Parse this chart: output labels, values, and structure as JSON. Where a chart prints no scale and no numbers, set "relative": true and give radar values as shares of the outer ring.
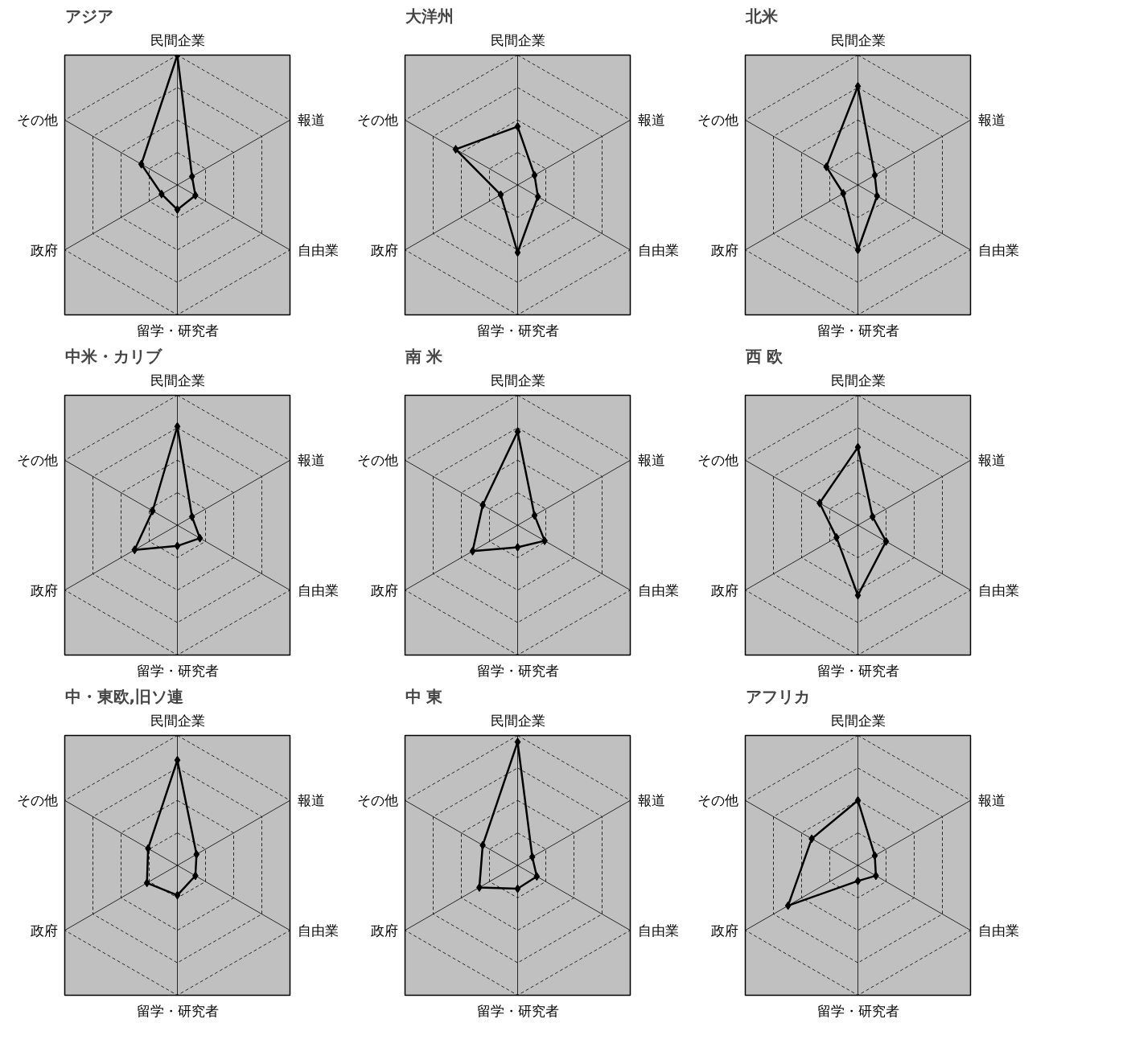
{
  "chart_data": [
    {
      "type": "radar",
      "title": "アジア",
      "categories": [
        "民間企業",
        "報道",
        "自由業",
        "留学・研究者",
        "政府",
        "その他"
      ],
      "relative": true,
      "grid": true,
      "marker": "diamond",
      "line_style": "solid",
      "series": [
        {
          "color": "#000000",
          "values": [
            1.0,
            0.13,
            0.16,
            0.19,
            0.14,
            0.32
          ]
        }
      ]
    },
    {
      "type": "radar",
      "title": "大洋州",
      "categories": [
        "民間企業",
        "報道",
        "自由業",
        "留学・研究者",
        "政府",
        "その他"
      ],
      "relative": true,
      "grid": true,
      "marker": "diamond",
      "line_style": "solid",
      "series": [
        {
          "color": "#000000",
          "values": [
            0.45,
            0.15,
            0.18,
            0.52,
            0.15,
            0.55
          ]
        }
      ]
    },
    {
      "type": "radar",
      "title": "北米",
      "categories": [
        "民間企業",
        "報道",
        "自由業",
        "留学・研究者",
        "政府",
        "その他"
      ],
      "relative": true,
      "grid": true,
      "marker": "diamond",
      "line_style": "solid",
      "series": [
        {
          "color": "#000000",
          "values": [
            0.76,
            0.15,
            0.17,
            0.5,
            0.13,
            0.28
          ]
        }
      ]
    },
    {
      "type": "radar",
      "title": "中米・カリブ",
      "categories": [
        "民間企業",
        "報道",
        "自由業",
        "留学・研究者",
        "政府",
        "その他"
      ],
      "relative": true,
      "grid": true,
      "marker": "diamond",
      "line_style": "solid",
      "series": [
        {
          "color": "#000000",
          "values": [
            0.76,
            0.13,
            0.2,
            0.16,
            0.38,
            0.22
          ]
        }
      ]
    },
    {
      "type": "radar",
      "title": "南 米",
      "categories": [
        "民間企業",
        "報道",
        "自由業",
        "留学・研究者",
        "政府",
        "その他"
      ],
      "relative": true,
      "grid": true,
      "marker": "diamond",
      "line_style": "solid",
      "series": [
        {
          "color": "#000000",
          "values": [
            0.72,
            0.15,
            0.24,
            0.17,
            0.4,
            0.31
          ]
        }
      ]
    },
    {
      "type": "radar",
      "title": "西 欧",
      "categories": [
        "民間企業",
        "報道",
        "自由業",
        "留学・研究者",
        "政府",
        "その他"
      ],
      "relative": true,
      "grid": true,
      "marker": "diamond",
      "line_style": "solid",
      "series": [
        {
          "color": "#000000",
          "values": [
            0.6,
            0.13,
            0.25,
            0.54,
            0.19,
            0.34
          ]
        }
      ]
    },
    {
      "type": "radar",
      "title": "中・東欧,旧ソ連",
      "categories": [
        "民間企業",
        "報道",
        "自由業",
        "留学・研究者",
        "政府",
        "その他"
      ],
      "relative": true,
      "grid": true,
      "marker": "diamond",
      "line_style": "solid",
      "series": [
        {
          "color": "#000000",
          "values": [
            0.81,
            0.17,
            0.16,
            0.23,
            0.27,
            0.26
          ]
        }
      ]
    },
    {
      "type": "radar",
      "title": "中 東",
      "categories": [
        "民間企業",
        "報道",
        "自由業",
        "留学・研究者",
        "政府",
        "その他"
      ],
      "relative": true,
      "grid": true,
      "marker": "diamond",
      "line_style": "solid",
      "series": [
        {
          "color": "#000000",
          "values": [
            0.95,
            0.13,
            0.17,
            0.18,
            0.34,
            0.31
          ]
        }
      ]
    },
    {
      "type": "radar",
      "title": "アフリカ",
      "categories": [
        "民間企業",
        "報道",
        "自由業",
        "留学・研究者",
        "政府",
        "その他"
      ],
      "relative": true,
      "grid": true,
      "marker": "diamond",
      "line_style": "solid",
      "series": [
        {
          "color": "#000000",
          "values": [
            0.5,
            0.15,
            0.16,
            0.12,
            0.62,
            0.41
          ]
        }
      ]
    }
  ]
}
